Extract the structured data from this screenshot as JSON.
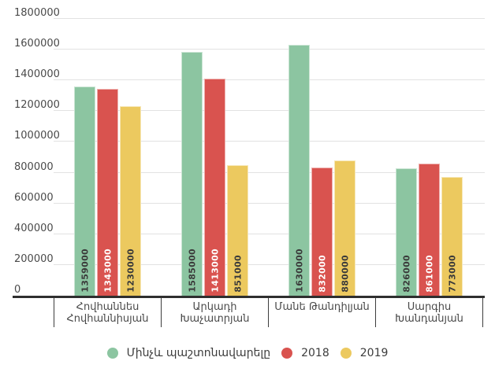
{
  "style": {
    "background": "#ffffff",
    "axis_line_color": "#2f2f2f",
    "grid_color": "#e2e2e2",
    "tick_label_color": "#4a4a4a",
    "category_label_color": "#4a4a4a",
    "legend_label_color": "#3c3c3c"
  },
  "chart_data": {
    "type": "bar",
    "title": "",
    "categories": [
      "Հովհաննես Հովհաննիսյան",
      "Արկադի Խաչատրյան",
      "Մանե Թանդիլյան",
      "Սարգիս Խանդանյան"
    ],
    "series": [
      {
        "name": "Մինչև պաշտոնավարելը",
        "color": "#8cc5a1",
        "label_color": "#3a3a3a",
        "values": [
          1359000,
          1585000,
          1630000,
          826000
        ]
      },
      {
        "name": "2018",
        "color": "#d9534f",
        "label_color": "#ffffff",
        "values": [
          1343000,
          1413000,
          832000,
          861000
        ]
      },
      {
        "name": "2019",
        "color": "#ecc95f",
        "label_color": "#3a3a3a",
        "values": [
          1230000,
          851000,
          880000,
          773000
        ]
      }
    ],
    "ylim": [
      0,
      1800000
    ],
    "ytick_step": 200000,
    "yticks": [
      "0",
      "200000",
      "400000",
      "600000",
      "800000",
      "1000000",
      "1200000",
      "1400000",
      "1600000",
      "1800000"
    ],
    "grid": true,
    "legend_position": "bottom",
    "value_labels": "rotated-inside-bottom"
  }
}
